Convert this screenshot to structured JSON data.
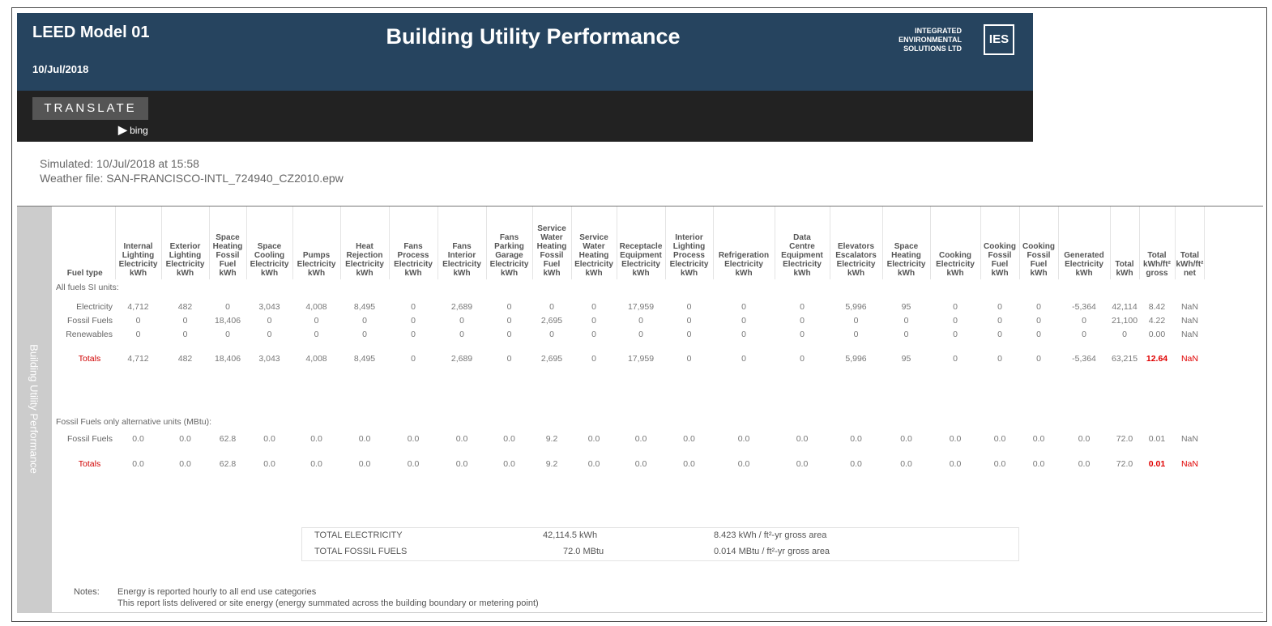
{
  "header": {
    "model": "LEED Model 01",
    "date": "10/Jul/2018",
    "title": "Building Utility Performance",
    "company_lines": [
      "INTEGRATED",
      "ENVIRONMENTAL",
      "SOLUTIONS LTD"
    ],
    "logo": "IES"
  },
  "toolbar": {
    "translate_label": "TRANSLATE",
    "bing_label": "bing",
    "bing_icon": "bing-icon"
  },
  "simulation": {
    "simulated": "Simulated: 10/Jul/2018 at 15:58",
    "weather": "Weather file: SAN-FRANCISCO-INTL_724940_CZ2010.epw"
  },
  "side_label": "Building Utility Performance",
  "table": {
    "columns": [
      {
        "lines": [
          "Fuel type"
        ]
      },
      {
        "lines": [
          "Internal",
          "Lighting",
          "Electricity",
          "kWh"
        ]
      },
      {
        "lines": [
          "Exterior",
          "Lighting",
          "Electricity",
          "kWh"
        ]
      },
      {
        "lines": [
          "Space",
          "Heating",
          "Fossil",
          "Fuel",
          "kWh"
        ]
      },
      {
        "lines": [
          "Space",
          "Cooling",
          "Electricity",
          "kWh"
        ]
      },
      {
        "lines": [
          "Pumps",
          "Electricity",
          "kWh"
        ]
      },
      {
        "lines": [
          "Heat",
          "Rejection",
          "Electricity",
          "kWh"
        ]
      },
      {
        "lines": [
          "Fans",
          "Process",
          "Electricity",
          "kWh"
        ]
      },
      {
        "lines": [
          "Fans",
          "Interior",
          "Electricity",
          "kWh"
        ]
      },
      {
        "lines": [
          "Fans",
          "Parking",
          "Garage",
          "Electricity",
          "kWh"
        ]
      },
      {
        "lines": [
          "Service",
          "Water",
          "Heating",
          "Fossil",
          "Fuel",
          "kWh"
        ]
      },
      {
        "lines": [
          "Service",
          "Water",
          "Heating",
          "Electricity",
          "kWh"
        ]
      },
      {
        "lines": [
          "Receptacle",
          "Equipment",
          "Electricity",
          "kWh"
        ]
      },
      {
        "lines": [
          "Interior",
          "Lighting",
          "Process",
          "Electricity",
          "kWh"
        ]
      },
      {
        "lines": [
          "Refrigeration",
          "Electricity",
          "kWh"
        ]
      },
      {
        "lines": [
          "Data",
          "Centre",
          "Equipment",
          "Electricity",
          "kWh"
        ]
      },
      {
        "lines": [
          "Elevators",
          "Escalators",
          "Electricity",
          "kWh"
        ]
      },
      {
        "lines": [
          "Space",
          "Heating",
          "Electricity",
          "kWh"
        ]
      },
      {
        "lines": [
          "Cooking",
          "Electricity",
          "kWh"
        ]
      },
      {
        "lines": [
          "Cooking",
          "Fossil",
          "Fuel",
          "kWh"
        ]
      },
      {
        "lines": [
          "Cooking",
          "Fossil",
          "Fuel",
          "kWh"
        ]
      },
      {
        "lines": [
          "Generated",
          "Electricity",
          "kWh"
        ]
      },
      {
        "lines": [
          "Total",
          "kWh"
        ]
      },
      {
        "lines": [
          "Total",
          "kWh/ft²",
          "gross"
        ]
      },
      {
        "lines": [
          "Total",
          "kWh/ft²",
          "net"
        ]
      }
    ],
    "si_section_label": "All fuels SI units:",
    "si_rows": [
      {
        "label": "Electricity",
        "values": [
          "4,712",
          "482",
          "0",
          "3,043",
          "4,008",
          "8,495",
          "0",
          "2,689",
          "0",
          "0",
          "0",
          "17,959",
          "0",
          "0",
          "0",
          "5,996",
          "95",
          "0",
          "0",
          "0",
          "-5,364",
          "42,114",
          "8.42",
          "NaN"
        ]
      },
      {
        "label": "Fossil Fuels",
        "values": [
          "0",
          "0",
          "18,406",
          "0",
          "0",
          "0",
          "0",
          "0",
          "0",
          "2,695",
          "0",
          "0",
          "0",
          "0",
          "0",
          "0",
          "0",
          "0",
          "0",
          "0",
          "0",
          "21,100",
          "4.22",
          "NaN"
        ]
      },
      {
        "label": "Renewables",
        "values": [
          "0",
          "0",
          "0",
          "0",
          "0",
          "0",
          "0",
          "0",
          "0",
          "0",
          "0",
          "0",
          "0",
          "0",
          "0",
          "0",
          "0",
          "0",
          "0",
          "0",
          "0",
          "0",
          "0.00",
          "NaN"
        ]
      }
    ],
    "si_totals": {
      "label": "Totals",
      "values": [
        "4,712",
        "482",
        "18,406",
        "3,043",
        "4,008",
        "8,495",
        "0",
        "2,689",
        "0",
        "2,695",
        "0",
        "17,959",
        "0",
        "0",
        "0",
        "5,996",
        "95",
        "0",
        "0",
        "0",
        "-5,364",
        "63,215",
        "12.64",
        "NaN"
      ]
    },
    "alt_section_label": "Fossil Fuels only alternative units (MBtu):",
    "alt_rows": [
      {
        "label": "Fossil Fuels",
        "values": [
          "0.0",
          "0.0",
          "62.8",
          "0.0",
          "0.0",
          "0.0",
          "0.0",
          "0.0",
          "0.0",
          "9.2",
          "0.0",
          "0.0",
          "0.0",
          "0.0",
          "0.0",
          "0.0",
          "0.0",
          "0.0",
          "0.0",
          "0.0",
          "0.0",
          "72.0",
          "0.01",
          "NaN"
        ]
      }
    ],
    "alt_totals": {
      "label": "Totals",
      "values": [
        "0.0",
        "0.0",
        "62.8",
        "0.0",
        "0.0",
        "0.0",
        "0.0",
        "0.0",
        "0.0",
        "9.2",
        "0.0",
        "0.0",
        "0.0",
        "0.0",
        "0.0",
        "0.0",
        "0.0",
        "0.0",
        "0.0",
        "0.0",
        "0.0",
        "72.0",
        "0.01",
        "NaN"
      ]
    }
  },
  "summary": {
    "electricity": {
      "label": "TOTAL ELECTRICITY",
      "value": "42,114.5 kWh",
      "intensity": "8.423 kWh / ft²-yr gross area"
    },
    "fossil": {
      "label": "TOTAL FOSSIL FUELS",
      "value": "72.0 MBtu",
      "intensity": "0.014 MBtu / ft²-yr gross area"
    }
  },
  "notes": {
    "label": "Notes:",
    "lines": [
      "Energy is reported hourly to all end use categories",
      "This report lists delivered or site energy (energy summated across the building boundary or metering point)"
    ]
  }
}
